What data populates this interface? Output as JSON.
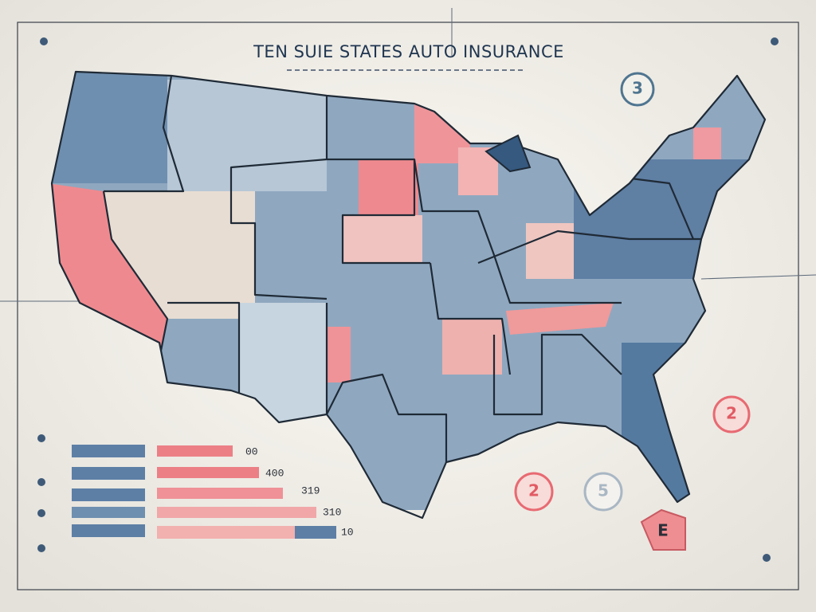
{
  "header": {
    "title": "TEN SUIE STATES AUTO INSURANCE"
  },
  "legend": {
    "rows": [
      {
        "value": "00"
      },
      {
        "value": "400"
      },
      {
        "value": "319"
      },
      {
        "value": "310"
      },
      {
        "value": "10"
      }
    ]
  },
  "badges": [
    {
      "label": "3"
    },
    {
      "label": "2"
    },
    {
      "label": "2"
    },
    {
      "label": "5"
    },
    {
      "label": "E"
    }
  ]
}
